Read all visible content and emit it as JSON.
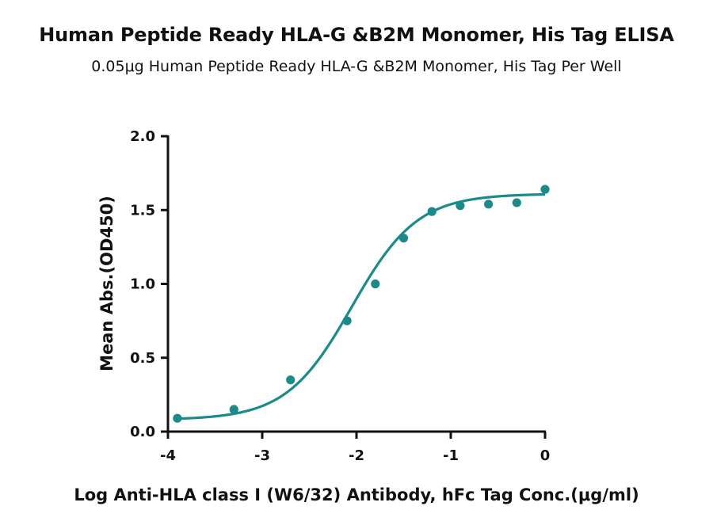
{
  "chart_data": {
    "type": "scatter",
    "title": "Human Peptide Ready HLA-G &B2M Monomer, His Tag ELISA",
    "subtitle": "0.05μg Human Peptide Ready HLA-G &B2M Monomer, His Tag Per Well",
    "xlabel": "Log Anti-HLA class I (W6/32) Antibody, hFc Tag Conc.(μg/ml)",
    "ylabel": "Mean Abs.(OD450)",
    "xlim": [
      -4,
      0
    ],
    "ylim": [
      0,
      2.0
    ],
    "x_ticks": [
      -4,
      -3,
      -2,
      -1,
      0
    ],
    "y_ticks": [
      0.0,
      0.5,
      1.0,
      1.5,
      2.0
    ],
    "x_tick_labels": [
      "-4",
      "-3",
      "-2",
      "-1",
      "0"
    ],
    "y_tick_labels": [
      "0.0",
      "0.5",
      "1.0",
      "1.5",
      "2.0"
    ],
    "grid": false,
    "series": [
      {
        "color": "#1b8a8a",
        "x": [
          -3.9,
          -3.3,
          -2.7,
          -2.1,
          -1.8,
          -1.5,
          -1.2,
          -0.9,
          -0.6,
          -0.3,
          0.0
        ],
        "y": [
          0.09,
          0.15,
          0.35,
          0.75,
          1.0,
          1.31,
          1.49,
          1.53,
          1.54,
          1.55,
          1.64
        ],
        "fit": {
          "type": "4PL",
          "bottom": 0.08,
          "top": 1.61,
          "logEC50": -2.05,
          "hill": 1.25
        }
      }
    ]
  }
}
